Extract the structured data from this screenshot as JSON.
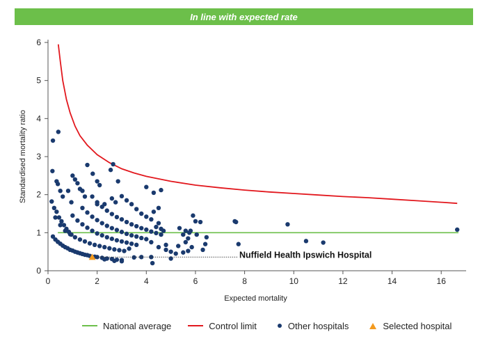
{
  "banner": {
    "text": "In line with expected rate",
    "color": "#6cbf4a"
  },
  "chart_data": {
    "type": "scatter",
    "xlabel": "Expected mortality",
    "ylabel": "Standardised mortality ratio",
    "xlim": [
      0,
      16.9
    ],
    "ylim": [
      0,
      6
    ],
    "xticks": [
      0,
      2,
      4,
      6,
      8,
      10,
      12,
      14,
      16
    ],
    "yticks": [
      0,
      1,
      2,
      3,
      4,
      5,
      6
    ],
    "grid": false,
    "legend_position": "bottom",
    "national_average": {
      "name": "National average",
      "y": 1,
      "x_range": [
        0.4,
        16.7
      ],
      "color": "#6cbf4a"
    },
    "control_limit": {
      "name": "Control limit",
      "color": "#e2171d",
      "points": [
        [
          0.42,
          5.95
        ],
        [
          0.5,
          5.5
        ],
        [
          0.6,
          5.0
        ],
        [
          0.75,
          4.5
        ],
        [
          0.9,
          4.15
        ],
        [
          1.1,
          3.8
        ],
        [
          1.3,
          3.55
        ],
        [
          1.6,
          3.3
        ],
        [
          2.0,
          3.05
        ],
        [
          2.5,
          2.84
        ],
        [
          3.0,
          2.68
        ],
        [
          3.5,
          2.57
        ],
        [
          4.0,
          2.48
        ],
        [
          5.0,
          2.35
        ],
        [
          6.0,
          2.25
        ],
        [
          7.0,
          2.18
        ],
        [
          8.0,
          2.12
        ],
        [
          9.0,
          2.07
        ],
        [
          10.0,
          2.03
        ],
        [
          11.0,
          1.99
        ],
        [
          12.0,
          1.95
        ],
        [
          13.0,
          1.92
        ],
        [
          14.0,
          1.88
        ],
        [
          15.0,
          1.84
        ],
        [
          16.0,
          1.8
        ],
        [
          16.65,
          1.77
        ]
      ]
    },
    "other_hospitals": {
      "name": "Other hospitals",
      "color": "#1a3a6e",
      "points": [
        [
          0.2,
          3.42
        ],
        [
          0.42,
          3.65
        ],
        [
          0.18,
          2.62
        ],
        [
          0.35,
          2.35
        ],
        [
          0.4,
          2.28
        ],
        [
          0.5,
          2.1
        ],
        [
          0.6,
          1.95
        ],
        [
          0.15,
          1.82
        ],
        [
          0.25,
          1.65
        ],
        [
          0.35,
          1.55
        ],
        [
          0.45,
          1.4
        ],
        [
          0.55,
          1.3
        ],
        [
          0.65,
          1.2
        ],
        [
          0.75,
          1.1
        ],
        [
          0.85,
          1.02
        ],
        [
          0.95,
          0.95
        ],
        [
          0.82,
          2.1
        ],
        [
          0.95,
          1.8
        ],
        [
          1.0,
          2.5
        ],
        [
          1.1,
          2.4
        ],
        [
          1.2,
          2.3
        ],
        [
          1.3,
          2.15
        ],
        [
          1.4,
          2.1
        ],
        [
          1.5,
          1.95
        ],
        [
          1.6,
          2.78
        ],
        [
          1.82,
          2.55
        ],
        [
          2.0,
          2.35
        ],
        [
          2.1,
          2.25
        ],
        [
          2.55,
          2.65
        ],
        [
          2.65,
          2.8
        ],
        [
          2.85,
          2.35
        ],
        [
          2.0,
          1.75
        ],
        [
          2.3,
          1.75
        ],
        [
          2.6,
          1.9
        ],
        [
          2.75,
          1.8
        ],
        [
          3.0,
          1.96
        ],
        [
          3.2,
          1.85
        ],
        [
          3.4,
          1.75
        ],
        [
          3.6,
          1.62
        ],
        [
          3.8,
          1.5
        ],
        [
          0.2,
          0.9
        ],
        [
          0.3,
          0.82
        ],
        [
          0.4,
          0.76
        ],
        [
          0.5,
          0.71
        ],
        [
          0.6,
          0.66
        ],
        [
          0.7,
          0.62
        ],
        [
          0.8,
          0.59
        ],
        [
          0.9,
          0.55
        ],
        [
          1.0,
          0.53
        ],
        [
          1.1,
          0.5
        ],
        [
          1.2,
          0.48
        ],
        [
          1.3,
          0.46
        ],
        [
          1.4,
          0.44
        ],
        [
          1.5,
          0.42
        ],
        [
          1.6,
          0.41
        ],
        [
          1.7,
          0.39
        ],
        [
          1.9,
          0.37
        ],
        [
          2.0,
          0.36
        ],
        [
          2.2,
          0.34
        ],
        [
          2.4,
          0.32
        ],
        [
          2.6,
          0.31
        ],
        [
          2.8,
          0.29
        ],
        [
          3.0,
          0.28
        ],
        [
          0.3,
          1.4
        ],
        [
          0.5,
          1.2
        ],
        [
          0.7,
          1.05
        ],
        [
          0.9,
          0.96
        ],
        [
          1.1,
          0.88
        ],
        [
          1.3,
          0.82
        ],
        [
          1.5,
          0.77
        ],
        [
          1.7,
          0.72
        ],
        [
          1.9,
          0.68
        ],
        [
          2.1,
          0.65
        ],
        [
          2.3,
          0.62
        ],
        [
          2.5,
          0.59
        ],
        [
          2.7,
          0.56
        ],
        [
          2.9,
          0.54
        ],
        [
          3.1,
          0.52
        ],
        [
          1.0,
          1.45
        ],
        [
          1.2,
          1.32
        ],
        [
          1.4,
          1.22
        ],
        [
          1.6,
          1.13
        ],
        [
          1.8,
          1.05
        ],
        [
          2.0,
          0.98
        ],
        [
          2.2,
          0.93
        ],
        [
          2.4,
          0.88
        ],
        [
          2.6,
          0.84
        ],
        [
          2.8,
          0.8
        ],
        [
          3.0,
          0.77
        ],
        [
          3.2,
          0.74
        ],
        [
          3.4,
          0.71
        ],
        [
          3.6,
          0.68
        ],
        [
          1.4,
          1.65
        ],
        [
          1.6,
          1.53
        ],
        [
          1.8,
          1.42
        ],
        [
          2.0,
          1.33
        ],
        [
          2.2,
          1.25
        ],
        [
          2.4,
          1.18
        ],
        [
          2.6,
          1.12
        ],
        [
          2.8,
          1.07
        ],
        [
          3.0,
          1.02
        ],
        [
          3.2,
          0.97
        ],
        [
          3.4,
          0.93
        ],
        [
          3.6,
          0.9
        ],
        [
          3.8,
          0.86
        ],
        [
          4.0,
          0.83
        ],
        [
          1.8,
          1.95
        ],
        [
          2.0,
          1.8
        ],
        [
          2.2,
          1.68
        ],
        [
          2.4,
          1.58
        ],
        [
          2.6,
          1.49
        ],
        [
          2.8,
          1.41
        ],
        [
          3.0,
          1.35
        ],
        [
          3.2,
          1.28
        ],
        [
          3.4,
          1.22
        ],
        [
          3.6,
          1.17
        ],
        [
          3.8,
          1.12
        ],
        [
          4.0,
          1.08
        ],
        [
          4.2,
          1.03
        ],
        [
          4.4,
          0.99
        ],
        [
          4.6,
          0.95
        ],
        [
          4.0,
          2.2
        ],
        [
          4.3,
          2.05
        ],
        [
          4.6,
          2.12
        ],
        [
          4.5,
          1.65
        ],
        [
          4.3,
          1.55
        ],
        [
          4.0,
          1.42
        ],
        [
          4.2,
          1.35
        ],
        [
          4.5,
          1.25
        ],
        [
          4.4,
          1.15
        ],
        [
          4.6,
          1.1
        ],
        [
          4.7,
          1.05
        ],
        [
          4.2,
          0.75
        ],
        [
          4.5,
          0.62
        ],
        [
          4.8,
          0.55
        ],
        [
          4.8,
          0.68
        ],
        [
          5.0,
          0.5
        ],
        [
          3.3,
          0.58
        ],
        [
          3.5,
          0.35
        ],
        [
          3.8,
          0.36
        ],
        [
          4.2,
          0.36
        ],
        [
          4.25,
          0.2
        ],
        [
          2.7,
          0.26
        ],
        [
          2.3,
          0.3
        ],
        [
          3.0,
          0.25
        ],
        [
          5.0,
          0.32
        ],
        [
          5.2,
          0.45
        ],
        [
          5.3,
          0.65
        ],
        [
          5.35,
          1.12
        ],
        [
          5.5,
          0.95
        ],
        [
          5.6,
          1.05
        ],
        [
          5.6,
          0.75
        ],
        [
          5.7,
          0.85
        ],
        [
          5.75,
          1.0
        ],
        [
          5.8,
          1.05
        ],
        [
          5.85,
          0.62
        ],
        [
          5.9,
          1.45
        ],
        [
          6.0,
          1.3
        ],
        [
          6.05,
          0.95
        ],
        [
          6.2,
          1.28
        ],
        [
          6.3,
          0.55
        ],
        [
          6.4,
          0.7
        ],
        [
          6.45,
          0.88
        ],
        [
          5.5,
          0.48
        ],
        [
          5.7,
          0.52
        ],
        [
          7.6,
          1.3
        ],
        [
          7.65,
          1.28
        ],
        [
          7.75,
          0.7
        ],
        [
          9.75,
          1.22
        ],
        [
          10.5,
          0.78
        ],
        [
          11.2,
          0.74
        ],
        [
          16.65,
          1.08
        ]
      ]
    },
    "selected_hospital": {
      "name": "Selected hospital",
      "x": 1.8,
      "y": 0.36,
      "color": "#f39a1f",
      "label": "Nuffield Health Ipswich Hospital"
    }
  }
}
